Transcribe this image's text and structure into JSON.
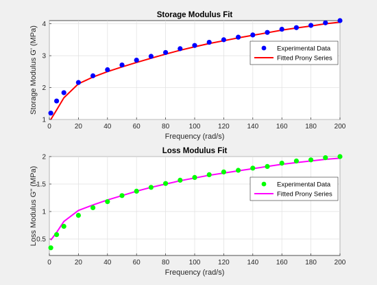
{
  "chart_data": [
    {
      "type": "line",
      "title": "Storage Modulus Fit",
      "xlabel": "Frequency (rad/s)",
      "ylabel": "Storage Modulus G' (MPa)",
      "xlim": [
        0,
        200
      ],
      "ylim": [
        1,
        4.1
      ],
      "xticks": [
        0,
        20,
        40,
        60,
        80,
        100,
        120,
        140,
        160,
        180,
        200
      ],
      "yticks": [
        1,
        2,
        3,
        4
      ],
      "grid": true,
      "legend": "right",
      "series": [
        {
          "name": "Experimental Data",
          "kind": "scatter",
          "color": "#0000ff",
          "x": [
            1,
            5,
            10,
            20,
            30,
            40,
            50,
            60,
            70,
            80,
            90,
            100,
            110,
            120,
            130,
            140,
            150,
            160,
            170,
            180,
            190,
            200
          ],
          "y": [
            1.2,
            1.58,
            1.84,
            2.16,
            2.37,
            2.56,
            2.71,
            2.86,
            2.98,
            3.1,
            3.22,
            3.32,
            3.42,
            3.5,
            3.58,
            3.65,
            3.73,
            3.83,
            3.88,
            3.95,
            4.03,
            4.1
          ]
        },
        {
          "name": "Fitted Prony Series",
          "kind": "line",
          "color": "#ff0000",
          "x": [
            1,
            5,
            10,
            20,
            30,
            40,
            50,
            60,
            70,
            80,
            90,
            100,
            110,
            120,
            130,
            140,
            150,
            160,
            170,
            180,
            190,
            200
          ],
          "y": [
            1.0,
            1.3,
            1.68,
            2.12,
            2.33,
            2.5,
            2.65,
            2.79,
            2.92,
            3.05,
            3.17,
            3.28,
            3.38,
            3.47,
            3.56,
            3.64,
            3.72,
            3.8,
            3.87,
            3.93,
            4.0,
            4.05
          ]
        }
      ]
    },
    {
      "type": "line",
      "title": "Loss Modulus Fit",
      "xlabel": "Frequency (rad/s)",
      "ylabel": "Loss Modulus G'' (MPa)",
      "xlim": [
        0,
        200
      ],
      "ylim": [
        0.2,
        2.0
      ],
      "xticks": [
        0,
        20,
        40,
        60,
        80,
        100,
        120,
        140,
        160,
        180,
        200
      ],
      "yticks": [
        0.5,
        1,
        1.5,
        2
      ],
      "grid": true,
      "legend": "right",
      "series": [
        {
          "name": "Experimental Data",
          "kind": "scatter",
          "color": "#00ff00",
          "x": [
            1,
            5,
            10,
            20,
            30,
            40,
            50,
            60,
            70,
            80,
            90,
            100,
            110,
            120,
            130,
            140,
            150,
            160,
            170,
            180,
            190,
            200
          ],
          "y": [
            0.34,
            0.58,
            0.73,
            0.93,
            1.07,
            1.18,
            1.29,
            1.37,
            1.44,
            1.51,
            1.57,
            1.62,
            1.67,
            1.72,
            1.75,
            1.79,
            1.82,
            1.88,
            1.92,
            1.94,
            1.98,
            2.0
          ]
        },
        {
          "name": "Fitted Prony Series",
          "kind": "line",
          "color": "#ff00ff",
          "x": [
            1,
            5,
            10,
            20,
            30,
            40,
            50,
            60,
            70,
            80,
            90,
            100,
            110,
            120,
            130,
            140,
            150,
            160,
            170,
            180,
            190,
            200
          ],
          "y": [
            0.48,
            0.62,
            0.82,
            1.02,
            1.12,
            1.21,
            1.29,
            1.37,
            1.44,
            1.5,
            1.56,
            1.61,
            1.66,
            1.7,
            1.74,
            1.78,
            1.82,
            1.86,
            1.89,
            1.92,
            1.95,
            1.97
          ]
        }
      ]
    }
  ]
}
